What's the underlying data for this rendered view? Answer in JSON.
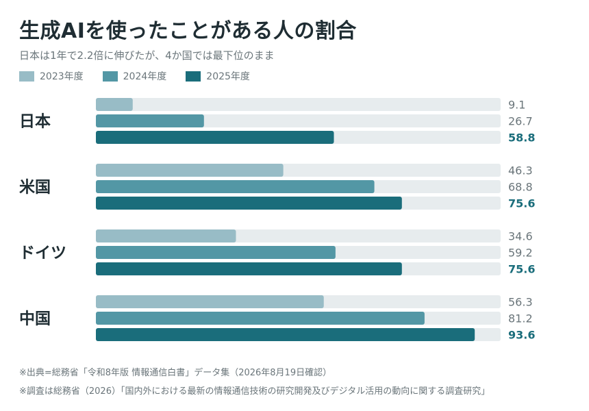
{
  "header": {
    "title": "生成AIを使ったことがある人の割合",
    "subtitle": "日本は1年で2.2倍に伸びたが、4か国では最下位のまま"
  },
  "footer": {
    "source_1": "※出典=総務省「令和8年版 情報通信白書」データ集（2026年8月19日確認）",
    "source_2": "※調査は総務省（2026）「国内外における最新の情報通信技術の研究開発及びデジタル活用の動向に関する調査研究」"
  },
  "chart_data": {
    "type": "bar",
    "orientation": "horizontal",
    "title": "生成AIを使ったことがある人の割合",
    "subtitle": "日本は1年で2.2倍に伸びたが、4か国では最下位のまま",
    "categories": [
      "日本",
      "米国",
      "ドイツ",
      "中国"
    ],
    "series": [
      {
        "name": "2023年度",
        "color": "#98bcc6",
        "values": [
          9.1,
          46.3,
          34.6,
          56.3
        ]
      },
      {
        "name": "2024年度",
        "color": "#5397a5",
        "values": [
          26.7,
          68.8,
          59.2,
          81.2
        ]
      },
      {
        "name": "2025年度",
        "color": "#1a6d7b",
        "values": [
          58.8,
          75.6,
          75.6,
          93.6
        ]
      }
    ],
    "xlim": [
      0,
      100
    ],
    "track_color": "#e7ecee",
    "value_label_color": "#6a757a",
    "highlight_label_color": "#1a6d7b",
    "grid": false,
    "legend_position": "top-left"
  }
}
